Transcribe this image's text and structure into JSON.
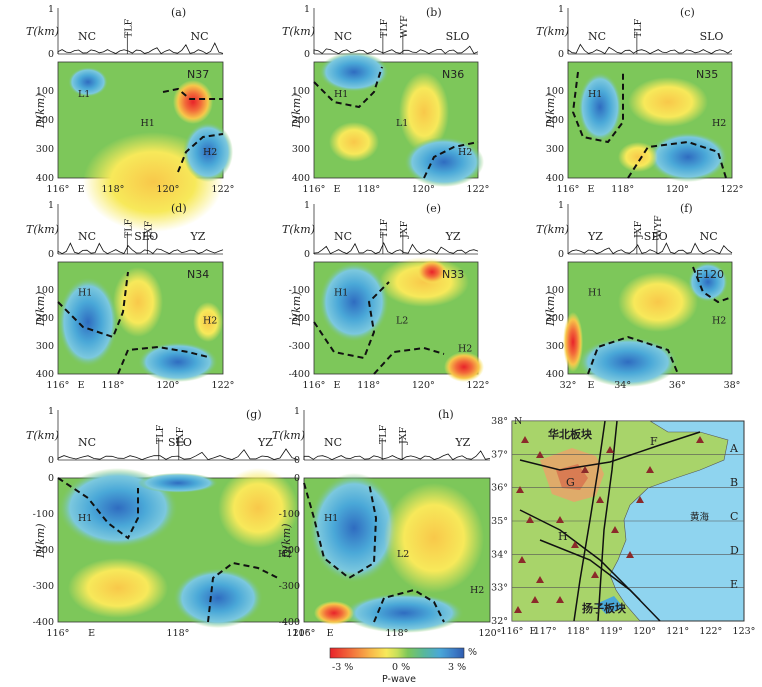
{
  "panels": [
    {
      "id": "a",
      "letter": "(a)",
      "t_label": "T(km)",
      "t_ticks": [
        "1",
        "0"
      ],
      "faults": [
        "TLF"
      ],
      "regions": [
        "NC",
        "NC"
      ],
      "d_label": "D(km)",
      "d_ticks": [
        "100",
        "200",
        "300",
        "400"
      ],
      "x_ticks": [
        "116°",
        "E",
        "118°",
        "120°",
        "122°"
      ],
      "lat_label": "N37",
      "anomalies": [
        "L1",
        "H1",
        "H2"
      ]
    },
    {
      "id": "b",
      "letter": "(b)",
      "t_label": "T(km)",
      "t_ticks": [
        "1",
        "0"
      ],
      "faults": [
        "TLF",
        "WYF"
      ],
      "regions": [
        "NC",
        "SLO"
      ],
      "d_label": "D(km)",
      "d_ticks": [
        "100",
        "200",
        "300",
        "400"
      ],
      "x_ticks": [
        "116°",
        "E",
        "118°",
        "120°",
        "122°"
      ],
      "lat_label": "N36",
      "anomalies": [
        "H1",
        "L1",
        "H2"
      ]
    },
    {
      "id": "c",
      "letter": "(c)",
      "t_label": "T(km)",
      "t_ticks": [
        "1",
        "0"
      ],
      "faults": [
        "TLF"
      ],
      "regions": [
        "NC",
        "SLO"
      ],
      "d_label": "D(km)",
      "d_ticks": [
        "100",
        "200",
        "300",
        "400"
      ],
      "x_ticks": [
        "116°",
        "E",
        "118°",
        "120°",
        "122°"
      ],
      "lat_label": "N35",
      "anomalies": [
        "H1",
        "H2"
      ]
    },
    {
      "id": "d",
      "letter": "(d)",
      "t_label": "T(km)",
      "t_ticks": [
        "1",
        "0"
      ],
      "faults": [
        "TLF",
        "JXF"
      ],
      "regions": [
        "NC",
        "SLO",
        "YZ"
      ],
      "d_label": "D(km)",
      "d_ticks": [
        "100",
        "200",
        "300",
        "400"
      ],
      "x_ticks": [
        "116°",
        "E",
        "118°",
        "120°",
        "122°"
      ],
      "lat_label": "N34",
      "anomalies": [
        "H1",
        "H2"
      ]
    },
    {
      "id": "e",
      "letter": "(e)",
      "t_label": "T(km)",
      "t_ticks": [
        "1",
        "0"
      ],
      "faults": [
        "TLF",
        "JXF"
      ],
      "regions": [
        "NC",
        "YZ"
      ],
      "d_label": "D(km)",
      "d_ticks": [
        "-100",
        "-200",
        "-300",
        "-400"
      ],
      "x_ticks": [
        "116°",
        "E",
        "118°",
        "120°",
        "122°"
      ],
      "lat_label": "N33",
      "anomalies": [
        "H1",
        "L2",
        "H2"
      ]
    },
    {
      "id": "f",
      "letter": "(f)",
      "t_label": "T(km)",
      "t_ticks": [
        "1",
        "0"
      ],
      "faults": [
        "JXF",
        "WYF"
      ],
      "regions": [
        "YZ",
        "SLO",
        "NC"
      ],
      "d_label": "D(km)",
      "d_ticks": [
        "100",
        "200",
        "300",
        "400"
      ],
      "x_ticks": [
        "32°",
        "E",
        "34°",
        "36°",
        "38°"
      ],
      "lat_label": "E120",
      "anomalies": [
        "H1",
        "H2"
      ]
    },
    {
      "id": "g",
      "letter": "(g)",
      "t_label": "T(km)",
      "t_ticks": [
        "1",
        "0"
      ],
      "faults": [
        "TLF",
        "JXF"
      ],
      "regions": [
        "NC",
        "SLO",
        "YZ"
      ],
      "d_label": "D(km)",
      "d_ticks": [
        "0",
        "-100",
        "-200",
        "-300",
        "-400"
      ],
      "x_ticks": [
        "116°",
        "E",
        "118°",
        "120°"
      ],
      "lat_label": "",
      "anomalies": [
        "H1",
        "H2"
      ]
    },
    {
      "id": "h",
      "letter": "(h)",
      "t_label": "T(km)",
      "t_ticks": [
        "1",
        "0"
      ],
      "faults": [
        "TLF",
        "JXF"
      ],
      "regions": [
        "NC",
        "YZ"
      ],
      "d_label": "D(km)",
      "d_ticks": [
        "0",
        "-100",
        "-200",
        "-300",
        "-400"
      ],
      "x_ticks": [
        "116°",
        "E",
        "118°",
        "120°"
      ],
      "lat_label": "",
      "anomalies": [
        "H1",
        "L2",
        "H2"
      ]
    }
  ],
  "map": {
    "title_north": "华北板块",
    "title_south": "扬子板块",
    "sea": "黄海",
    "lat_ticks": [
      "38°",
      "37°",
      "36°",
      "35°",
      "34°",
      "33°",
      "32°"
    ],
    "lon_ticks": [
      "116°",
      "E",
      "117°",
      "118°",
      "119°",
      "120°",
      "121°",
      "122°",
      "123°"
    ],
    "north_letter": "N",
    "profiles": [
      "A",
      "B",
      "C",
      "D",
      "E",
      "F",
      "G",
      "H"
    ]
  },
  "colorbar": {
    "labels": [
      "-3 %",
      "0 %",
      "3 %"
    ],
    "unit": "%",
    "title": "P-wave",
    "colors": [
      "#e8232a",
      "#f26b3a",
      "#f8b64a",
      "#f7e95a",
      "#c8e05a",
      "#7dc75a",
      "#58b89a",
      "#4aa8d8",
      "#3d7fc8",
      "#2f5cb0"
    ]
  }
}
